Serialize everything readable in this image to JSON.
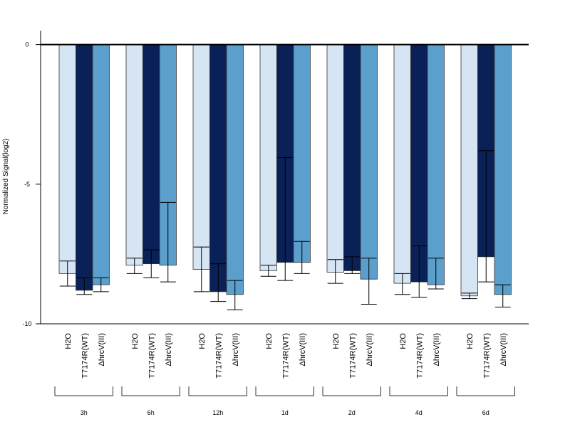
{
  "chart_data": {
    "type": "bar",
    "ylabel": "Normalized Signal(log2)",
    "ylim": [
      -10,
      0.5
    ],
    "yticks": [
      0,
      -5,
      -10
    ],
    "groups": [
      "3h",
      "6h",
      "12h",
      "1d",
      "2d",
      "4d",
      "6d"
    ],
    "series": [
      {
        "name": "H2O",
        "color": "#d6e5f4",
        "values": [
          -8.2,
          -7.9,
          -8.05,
          -8.1,
          -8.15,
          -8.55,
          -9.0
        ],
        "err_low": [
          -8.65,
          -8.2,
          -8.85,
          -8.3,
          -8.55,
          -8.95,
          -9.1
        ],
        "err_high": [
          -7.75,
          -7.65,
          -7.25,
          -7.9,
          -7.7,
          -8.2,
          -8.9
        ]
      },
      {
        "name": "T7174R(WT)",
        "color": "#0a2158",
        "values": [
          -8.8,
          -7.85,
          -8.85,
          -7.8,
          -8.1,
          -8.5,
          -7.6
        ],
        "err_low": [
          -8.95,
          -8.35,
          -9.2,
          -8.45,
          -8.2,
          -9.05,
          -8.5
        ],
        "err_high": [
          -8.35,
          -7.35,
          -7.85,
          -4.05,
          -7.6,
          -7.2,
          -3.8
        ]
      },
      {
        "name": "ΔhrcV(III)",
        "color": "#5b9fcc",
        "values": [
          -8.6,
          -7.9,
          -8.95,
          -7.8,
          -8.4,
          -8.6,
          -8.95
        ],
        "err_low": [
          -8.85,
          -8.5,
          -9.5,
          -8.2,
          -9.3,
          -8.75,
          -9.4
        ],
        "err_high": [
          -8.35,
          -5.65,
          -8.45,
          -7.05,
          -7.65,
          -7.65,
          -8.6
        ]
      }
    ],
    "grid": false,
    "legend": "none"
  }
}
